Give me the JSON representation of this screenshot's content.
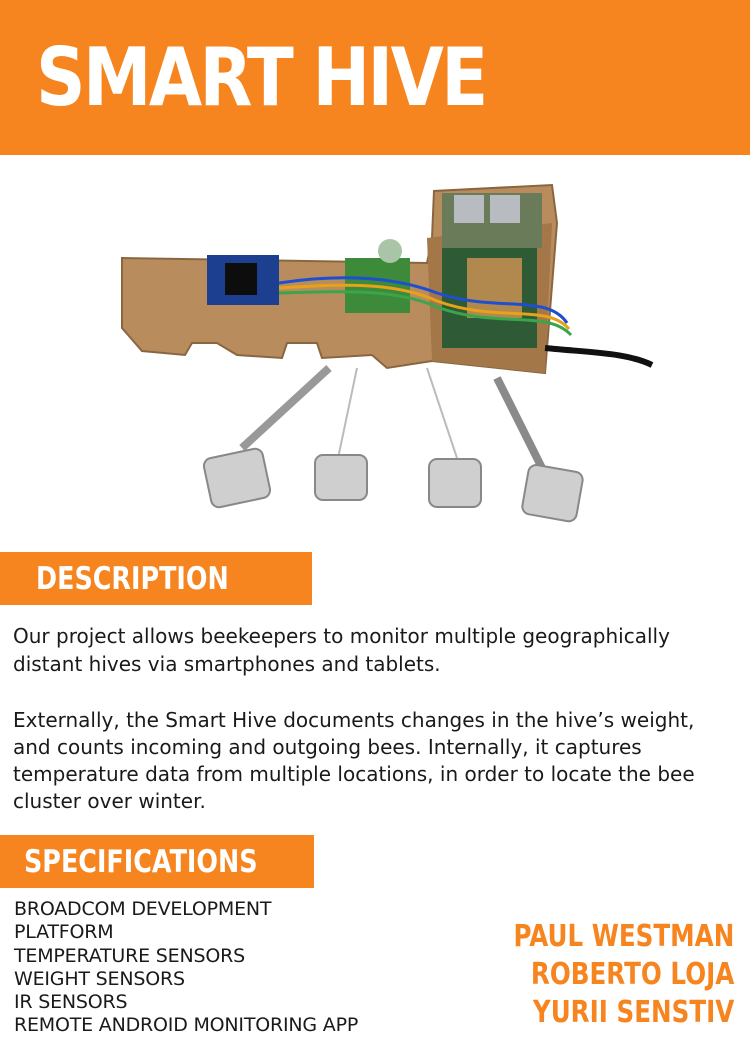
{
  "header": {
    "title": "SMART HIVE"
  },
  "description": {
    "heading": "DESCRIPTION",
    "paragraph_1": "Our project allows beekeepers to monitor multiple geographically distant hives via smartphones and tablets.",
    "paragraph_2": "Externally, the Smart Hive documents changes in the hive’s weight, and counts incoming and outgoing bees. Internally, it captures temperature data from multiple locations, in order to locate the bee cluster over winter."
  },
  "specifications": {
    "heading": "SPECIFICATIONS",
    "items": [
      "BROADCOM DEVELOPMENT",
      "PLATFORM",
      "TEMPERATURE SENSORS",
      "WEIGHT SENSORS",
      "IR SENSORS",
      "REMOTE ANDROID MONITORING APP"
    ]
  },
  "authors": [
    "PAUL WESTMAN",
    "ROBERTO LOJA",
    "YURII SENSTIV"
  ],
  "colors": {
    "accent": "#f6851f",
    "text": "#1a1a1a",
    "background": "#ffffff"
  },
  "photo": {
    "icon": "hardware-prototype-photo"
  }
}
